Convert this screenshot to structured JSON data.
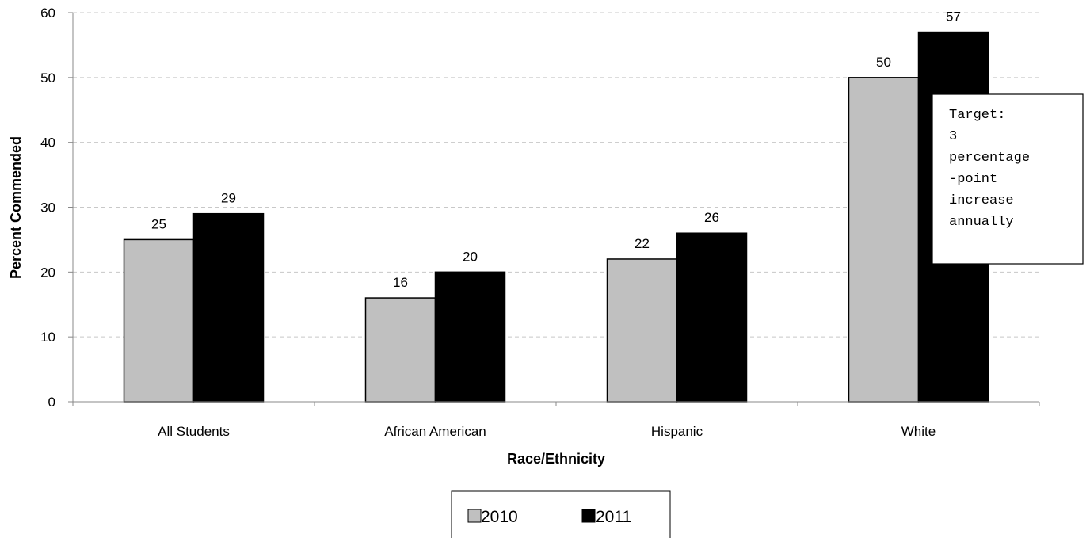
{
  "chart_data": {
    "type": "bar",
    "categories": [
      "All Students",
      "African American",
      "Hispanic",
      "White"
    ],
    "series": [
      {
        "name": "2010",
        "values": [
          25,
          16,
          22,
          50
        ],
        "color": "#c0c0c0"
      },
      {
        "name": "2011",
        "values": [
          29,
          20,
          26,
          57
        ],
        "color": "#000000"
      }
    ],
    "xlabel": "Race/Ethnicity",
    "ylabel": "Percent Commended",
    "ylim": [
      0,
      60
    ],
    "yticks": [
      0,
      10,
      20,
      30,
      40,
      50,
      60
    ],
    "grid": true,
    "legend_position": "bottom",
    "annotation": {
      "lines": [
        "Target:",
        "3",
        "percentage",
        "-point",
        "increase",
        "annually"
      ]
    }
  }
}
